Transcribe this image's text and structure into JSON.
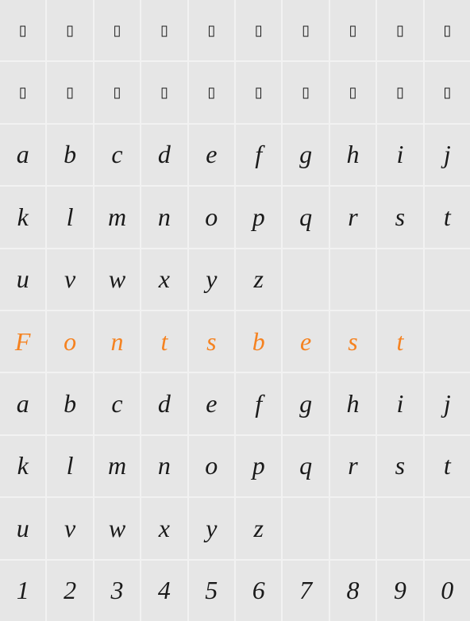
{
  "grid": {
    "columns": 10,
    "rows": 10,
    "cell_background": "#e6e6e6",
    "gap_color": "#f2f2f2",
    "default_color": "#1a1a1a",
    "highlight_color": "#f58220",
    "font_family": "Georgia, Times New Roman, serif",
    "font_style": "italic",
    "font_size_glyph": 32,
    "font_size_placeholder": 18,
    "rows_data": [
      {
        "type": "placeholder",
        "cells": [
          "▯",
          "▯",
          "▯",
          "▯",
          "▯",
          "▯",
          "▯",
          "▯",
          "▯",
          "▯"
        ]
      },
      {
        "type": "placeholder",
        "cells": [
          "▯",
          "▯",
          "▯",
          "▯",
          "▯",
          "▯",
          "▯",
          "▯",
          "▯",
          "▯"
        ]
      },
      {
        "type": "glyph",
        "cells": [
          "a",
          "b",
          "c",
          "d",
          "e",
          "f",
          "g",
          "h",
          "i",
          "j"
        ]
      },
      {
        "type": "glyph",
        "cells": [
          "k",
          "l",
          "m",
          "n",
          "o",
          "p",
          "q",
          "r",
          "s",
          "t"
        ]
      },
      {
        "type": "glyph",
        "cells": [
          "u",
          "v",
          "w",
          "x",
          "y",
          "z",
          "",
          "",
          "",
          ""
        ]
      },
      {
        "type": "highlight",
        "cells": [
          "F",
          "o",
          "n",
          "t",
          "s",
          "b",
          "e",
          "s",
          "t",
          ""
        ]
      },
      {
        "type": "glyph",
        "cells": [
          "a",
          "b",
          "c",
          "d",
          "e",
          "f",
          "g",
          "h",
          "i",
          "j"
        ]
      },
      {
        "type": "glyph",
        "cells": [
          "k",
          "l",
          "m",
          "n",
          "o",
          "p",
          "q",
          "r",
          "s",
          "t"
        ]
      },
      {
        "type": "glyph",
        "cells": [
          "u",
          "v",
          "w",
          "x",
          "y",
          "z",
          "",
          "",
          "",
          ""
        ]
      },
      {
        "type": "digit",
        "cells": [
          "1",
          "2",
          "3",
          "4",
          "5",
          "6",
          "7",
          "8",
          "9",
          "0"
        ]
      }
    ]
  }
}
